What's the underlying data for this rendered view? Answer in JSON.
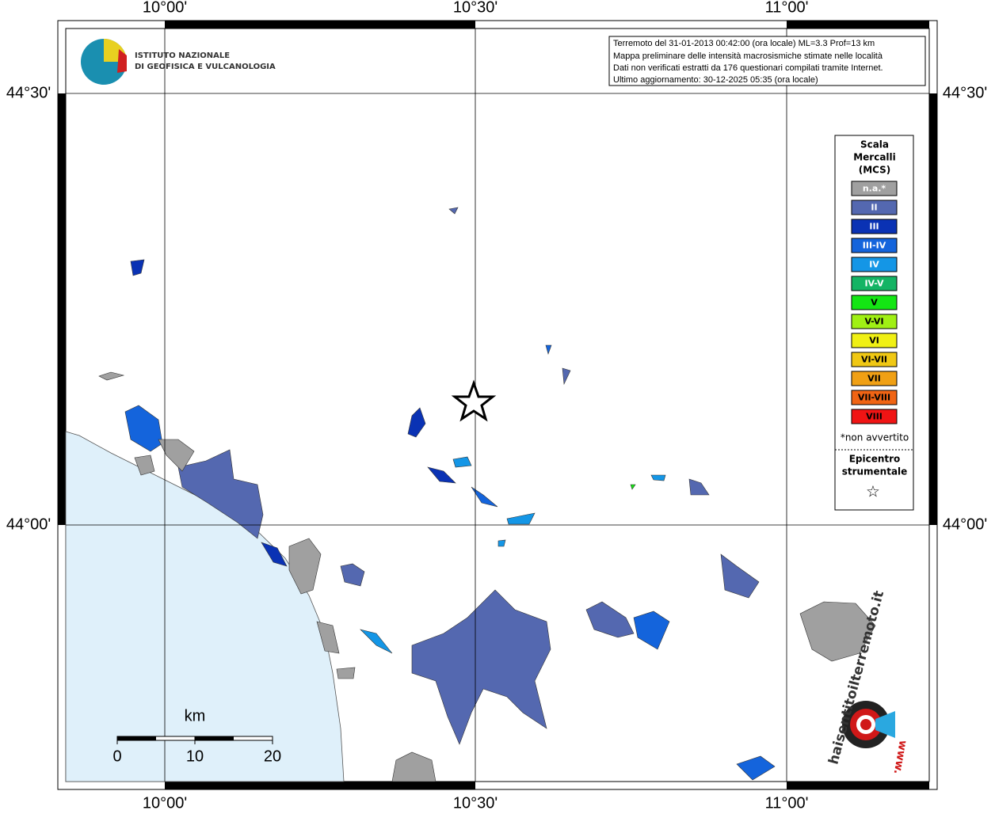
{
  "info_box": {
    "lines": [
      "Terremoto del 31-01-2013 00:42:00 (ora locale) ML=3.3 Prof=13 km",
      "Mappa preliminare delle intensità macrosismiche stimate nelle località",
      "Dati non verificati estratti da 176 questionari compilati tramite Internet.",
      "Ultimo aggiornamento: 30-12-2025 05:35 (ora locale)"
    ]
  },
  "logo": {
    "lines": [
      "ISTITUTO NAZIONALE",
      "DI GEOFISICA E VULCANOLOGIA"
    ]
  },
  "graticule": {
    "lon_labels": [
      "10°00'",
      "10°30'",
      "11°00'"
    ],
    "lat_labels": [
      "44°30'",
      "44°00'"
    ]
  },
  "legend": {
    "title": [
      "Scala",
      "Mercalli",
      "(MCS)"
    ],
    "items": [
      {
        "label": "n.a.*",
        "color": "#a0a0a0"
      },
      {
        "label": "II",
        "color": "#5468b0"
      },
      {
        "label": "III",
        "color": "#0a32b4"
      },
      {
        "label": "III-IV",
        "color": "#1464dc"
      },
      {
        "label": "IV",
        "color": "#1496e6"
      },
      {
        "label": "IV-V",
        "color": "#14b464"
      },
      {
        "label": "V",
        "color": "#14e614"
      },
      {
        "label": "V-VI",
        "color": "#a0f014"
      },
      {
        "label": "VI",
        "color": "#f0f014"
      },
      {
        "label": "VI-VII",
        "color": "#f0c814"
      },
      {
        "label": "VII",
        "color": "#f0a014"
      },
      {
        "label": "VII-VIII",
        "color": "#f06414"
      },
      {
        "label": "VIII",
        "color": "#f01414"
      }
    ],
    "note": "*non avvertito",
    "epicenter": [
      "Epicentro",
      "strumentale"
    ],
    "epicenter_symbol": "☆"
  },
  "scale_bar": {
    "unit": "km",
    "labels": [
      "0",
      "10",
      "20"
    ]
  },
  "brand": {
    "site": "haisentitoilterremoto.it",
    "prefix": "www."
  }
}
